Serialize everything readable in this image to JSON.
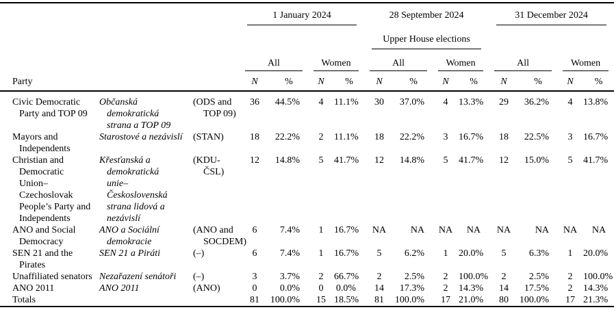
{
  "page": {
    "background": "#ffffff",
    "text_color": "#000000",
    "rule_color": "#000000"
  },
  "table": {
    "party_col_header": "Party",
    "groups": [
      {
        "label": "1 January 2024",
        "sublabel": ""
      },
      {
        "label": "28 September 2024",
        "sublabel": "Upper House elections"
      },
      {
        "label": "31 December 2024",
        "sublabel": ""
      }
    ],
    "subheaders": {
      "all": "All",
      "women": "Women"
    },
    "value_headers": {
      "n": "N",
      "pct": "%"
    },
    "rows": [
      {
        "name_en": "Civic Democratic\nParty and TOP 09",
        "name_cs": "Občanská\ndemokratická\nstrana a TOP 09",
        "abbr": "(ODS and\nTOP 09)",
        "values": [
          "36",
          "44.5%",
          "4",
          "11.1%",
          "30",
          "37.0%",
          "4",
          "13.3%",
          "29",
          "36.2%",
          "4",
          "13.8%"
        ]
      },
      {
        "name_en": "Mayors and\nIndependents",
        "name_cs": "Starostové a nezávislí",
        "abbr": "(STAN)",
        "values": [
          "18",
          "22.2%",
          "2",
          "11.1%",
          "18",
          "22.2%",
          "3",
          "16.7%",
          "18",
          "22.5%",
          "3",
          "16.7%"
        ]
      },
      {
        "name_en": "Christian and\nDemocratic\nUnion–\nCzechoslovak\nPeople’s Party and\nIndependents",
        "name_cs": "Křesťanská a\ndemokratická\nunie–\nČeskoslovenská\nstrana lidová a\nnezávislí",
        "abbr": "(KDU-ČSL)",
        "values": [
          "12",
          "14.8%",
          "5",
          "41.7%",
          "12",
          "14.8%",
          "5",
          "41.7%",
          "12",
          "15.0%",
          "5",
          "41.7%"
        ]
      },
      {
        "name_en": "ANO and Social\nDemocracy",
        "name_cs": "ANO a Sociální\ndemokracie",
        "abbr": "(ANO and\nSOCDEM)",
        "values": [
          "6",
          "7.4%",
          "1",
          "16.7%",
          "NA",
          "NA",
          "NA",
          "NA",
          "NA",
          "NA",
          "NA",
          "NA"
        ]
      },
      {
        "name_en": "SEN 21 and the\nPirates",
        "name_cs": "SEN 21 a Piráti",
        "abbr": "(–)",
        "values": [
          "6",
          "7.4%",
          "1",
          "16.7%",
          "5",
          "6.2%",
          "1",
          "20.0%",
          "5",
          "6.3%",
          "1",
          "20.0%"
        ]
      },
      {
        "name_en": "Unaffiliated senators",
        "name_cs": "Nezařazení senátoři",
        "abbr": "(–)",
        "values": [
          "3",
          "3.7%",
          "2",
          "66.7%",
          "2",
          "2.5%",
          "2",
          "100.0%",
          "2",
          "2.5%",
          "2",
          "100.0%"
        ]
      },
      {
        "name_en": "ANO 2011",
        "name_cs": "ANO 2011",
        "abbr": "(ANO)",
        "values": [
          "0",
          "0.0%",
          "0",
          "0.0%",
          "14",
          "17.3%",
          "2",
          "14.3%",
          "14",
          "17.5%",
          "2",
          "14.3%"
        ]
      },
      {
        "name_en": "Totals",
        "name_cs": "",
        "abbr": "",
        "values": [
          "81",
          "100.0%",
          "15",
          "18.5%",
          "81",
          "100.0%",
          "17",
          "21.0%",
          "80",
          "100.0%",
          "17",
          "21.3%"
        ]
      }
    ]
  }
}
